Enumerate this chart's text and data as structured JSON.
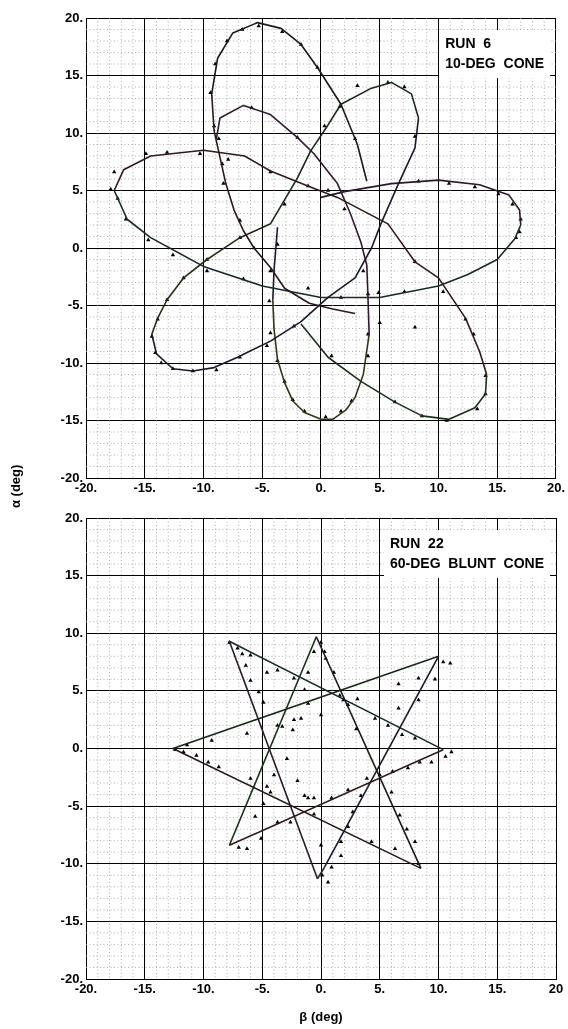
{
  "chart_data": [
    {
      "type": "line",
      "ylabel": "α (deg)",
      "annotations": [
        "RUN  6",
        "10-DEG  CONE"
      ],
      "xlim": [
        -20,
        20
      ],
      "ylim": [
        -20,
        20
      ],
      "xticks": [
        {
          "value": -20,
          "label": "-20."
        },
        {
          "value": -15,
          "label": "-15."
        },
        {
          "value": -10,
          "label": "-10."
        },
        {
          "value": -5,
          "label": "-5."
        },
        {
          "value": 0,
          "label": "0."
        },
        {
          "value": 5,
          "label": "5."
        },
        {
          "value": 10,
          "label": "10."
        },
        {
          "value": 15,
          "label": "15."
        },
        {
          "value": 20,
          "label": "20."
        }
      ],
      "yticks": [
        {
          "value": -20,
          "label": "-20."
        },
        {
          "value": -15,
          "label": "-15."
        },
        {
          "value": -10,
          "label": "-10."
        },
        {
          "value": -5,
          "label": "-5."
        },
        {
          "value": 0,
          "label": "0."
        },
        {
          "value": 5,
          "label": "5."
        },
        {
          "value": 10,
          "label": "10."
        },
        {
          "value": 15,
          "label": "15."
        },
        {
          "value": 20,
          "label": "20."
        }
      ],
      "grid": true,
      "legend": false,
      "series": [
        {
          "type": "line",
          "color": "#1a1a1a",
          "marker": "none",
          "x": [
            3.9,
            3.1,
            1.7,
            -0.3,
            -1.7,
            -3.4,
            -5.4,
            -7.5,
            -8.8,
            -9.3
          ],
          "values": [
            5.8,
            9,
            12.5,
            15.7,
            17.7,
            19.1,
            19.6,
            18.7,
            16.5,
            13.4
          ]
        },
        {
          "type": "line",
          "color": "#2b1a1a",
          "marker": "none",
          "x": [
            -9.3,
            -9.1,
            -8.6,
            -8.1,
            -7.4,
            -6.6,
            -5.7,
            -4.3,
            -3.1,
            -1,
            1,
            2.9
          ],
          "values": [
            13.4,
            10.2,
            7.9,
            5.6,
            3.3,
            1.5,
            0,
            -1.7,
            -3.5,
            -4.8,
            -5.3,
            -5.7
          ]
        },
        {
          "type": "line",
          "color": "#1a2b1a",
          "marker": "none",
          "x": [
            -6.9,
            -4.3,
            -2,
            -0.9,
            0.6,
            1.7,
            4.3,
            6,
            7.7,
            8.3
          ],
          "values": [
            0.9,
            2.1,
            6.1,
            8.4,
            10.7,
            12.5,
            13.9,
            14.4,
            13.4,
            11.3
          ]
        },
        {
          "type": "line",
          "color": "#1a1a2b",
          "marker": "none",
          "x": [
            8.3,
            8,
            6.6,
            5.1,
            4.3,
            2.9,
            0.6,
            -1.7,
            -4.3,
            -7.1,
            -9.1,
            -10.9,
            -12.6,
            -14,
            -14.4
          ],
          "values": [
            11.3,
            8.7,
            5.6,
            2.1,
            0,
            -2.6,
            -4.3,
            -6.4,
            -8.1,
            -9.5,
            -10.4,
            -10.7,
            -10.5,
            -9.2,
            -7.5
          ]
        },
        {
          "type": "line",
          "color": "#2b2b1a",
          "marker": "none",
          "x": [
            -14.4,
            -13.9,
            -13.1,
            -11.7,
            -9.7,
            -6.9
          ],
          "values": [
            -7.5,
            -6.1,
            -4.5,
            -2.6,
            -1,
            0.9
          ]
        },
        {
          "type": "line",
          "color": "#2b1a2b",
          "marker": "none",
          "x": [
            0,
            2,
            6,
            10,
            13.5,
            16,
            16.9,
            17
          ],
          "values": [
            4.4,
            4.9,
            5.6,
            5.9,
            5.5,
            4.6,
            3.3,
            2
          ]
        },
        {
          "type": "line",
          "color": "#1a2b2b",
          "marker": "none",
          "x": [
            17,
            16.5,
            15,
            12.5,
            10,
            5,
            0,
            -5,
            -10,
            -14.5,
            -16.5,
            -17.6
          ],
          "values": [
            2,
            0.8,
            -1,
            -2.3,
            -3.3,
            -4.3,
            -4.3,
            -3.3,
            -1.6,
            0.9,
            2.5,
            5
          ]
        },
        {
          "type": "line",
          "color": "#331a1a",
          "marker": "none",
          "x": [
            -17.6,
            -16.8,
            -14.5,
            -10,
            -6.5,
            -4.3,
            -0.9,
            1.4,
            5.7,
            8,
            10,
            12.3,
            13.5,
            14.1
          ],
          "values": [
            5,
            6.8,
            8,
            8.5,
            8,
            6.7,
            5.3,
            4.4,
            2.1,
            -1.2,
            -2.6,
            -6.1,
            -9,
            -11
          ]
        },
        {
          "type": "line",
          "color": "#1a331a",
          "marker": "none",
          "x": [
            14.1,
            14,
            13.1,
            10.9,
            8.6,
            6.3,
            3.4,
            0.6,
            -1.7
          ],
          "values": [
            -11,
            -12.7,
            -13.9,
            -14.9,
            -14.6,
            -13.4,
            -11.6,
            -9.5,
            -6.6
          ]
        },
        {
          "type": "line",
          "color": "#1a1a33",
          "marker": "none",
          "x": [
            -3.7,
            -4,
            -4.1
          ],
          "values": [
            1.8,
            -2,
            -4.5
          ]
        },
        {
          "type": "line",
          "color": "#33331a",
          "marker": "none",
          "x": [
            -4.1,
            -4,
            -3.7,
            -3.1,
            -2.4,
            -1.4,
            0,
            1,
            2.1,
            2.9,
            3.6,
            4.1
          ],
          "values": [
            -4.5,
            -7,
            -9.7,
            -11.7,
            -13.3,
            -14.3,
            -14.9,
            -14.9,
            -14.1,
            -13,
            -11,
            -7.5
          ]
        },
        {
          "type": "line",
          "color": "#331a33",
          "marker": "none",
          "x": [
            4.1,
            4,
            3.9,
            3.4,
            2.5,
            1.4,
            -0.6,
            -2,
            -4.3,
            -6.6,
            -8.6,
            -8.9
          ],
          "values": [
            -7.5,
            -4.3,
            -1.5,
            0.5,
            3,
            5.6,
            8.2,
            9.6,
            11.6,
            12.4,
            11.3,
            9.5
          ]
        },
        {
          "type": "scatter",
          "color": "#000000",
          "marker": "triangle",
          "x": [
            -6.7,
            -5.3,
            -3.3,
            -1.7,
            -0.3,
            -8,
            -9,
            -9.4,
            -9.1,
            -8.7,
            -8.4,
            -7.9,
            -14.9,
            -17.6,
            -17.9,
            -17.3,
            -16.6,
            -13.1,
            -10.3,
            -4.3,
            -5.9,
            -2,
            0.3,
            1.6,
            2.9,
            3.1,
            5.7,
            7.1,
            8,
            8.3,
            10.9,
            13.1,
            15.1,
            16.3,
            17,
            16.9,
            2,
            0.6,
            -1.1,
            -3.1,
            -6.9,
            -8.3,
            16.6,
            8,
            10.4,
            12.3,
            13,
            14,
            14,
            13.3,
            10.7,
            8.6,
            6.3,
            8,
            5,
            4,
            4,
            3.6,
            4,
            2.6,
            1.7,
            0.4,
            -1.4,
            -2.4,
            -3.1,
            -3.7,
            -4.3,
            -4.4,
            -4.3,
            -3.7,
            -5.7,
            -6.9,
            -9.7,
            -11.7,
            -13.1,
            -13.9,
            -14.4,
            -14.1,
            -13.6,
            -12.6,
            -10.9,
            -8.9,
            -6.9,
            -4.6,
            -2.3,
            0.9,
            7.1,
            4.9,
            1.7,
            -1.1,
            -6.6,
            -9.7,
            -12.6,
            -14.7
          ],
          "values": [
            19,
            19.3,
            18.8,
            17.7,
            15.7,
            18,
            16,
            13.5,
            10.6,
            9.5,
            7.3,
            7.7,
            8.2,
            6.6,
            5.1,
            4.3,
            2.5,
            8.3,
            8.2,
            6.6,
            12.2,
            9.6,
            10.6,
            12.3,
            9.5,
            14.1,
            14.4,
            14,
            9.7,
            5.8,
            5.6,
            5.3,
            4.7,
            3.8,
            2.5,
            1.4,
            3.4,
            5,
            5.4,
            3.8,
            2.4,
            5.6,
            0.9,
            -1.2,
            -3.8,
            -6.2,
            -7.5,
            -11.1,
            -12.7,
            -14,
            -15,
            -14.6,
            -13.4,
            -6.9,
            -6.5,
            -7.5,
            -4,
            -2,
            -9.4,
            -13.3,
            -14.2,
            -14.7,
            -14.2,
            -13.2,
            -11.6,
            -9.8,
            -7.4,
            -4.6,
            -2,
            0.3,
            0,
            0.9,
            -1,
            -2.6,
            -4.5,
            -6.2,
            -7.7,
            -9.1,
            -10,
            -10.5,
            -10.7,
            -10.6,
            -9.5,
            -8.5,
            -6.8,
            -9.4,
            -3.8,
            -3.9,
            -4.3,
            -3.5,
            -2.7,
            -2,
            -0.6,
            0.7
          ]
        }
      ]
    },
    {
      "type": "line",
      "xlabel": "β (deg)",
      "annotations": [
        "RUN  22",
        "60-DEG  BLUNT  CONE"
      ],
      "xlim": [
        -20,
        20
      ],
      "ylim": [
        -20,
        20
      ],
      "xticks": [
        {
          "value": -20,
          "label": "-20."
        },
        {
          "value": -15,
          "label": "-15."
        },
        {
          "value": -10,
          "label": "-10."
        },
        {
          "value": -5,
          "label": "-5."
        },
        {
          "value": 0,
          "label": "0."
        },
        {
          "value": 5,
          "label": "5."
        },
        {
          "value": 10,
          "label": "10."
        },
        {
          "value": 15,
          "label": "15."
        },
        20
      ],
      "yticks": [
        {
          "value": -20,
          "label": "-20."
        },
        {
          "value": -15,
          "label": "-15."
        },
        {
          "value": -10,
          "label": "-10."
        },
        {
          "value": -5,
          "label": "-5."
        },
        {
          "value": 0,
          "label": "0."
        },
        {
          "value": 5,
          "label": "5."
        },
        {
          "value": 10,
          "label": "10."
        },
        {
          "value": 15,
          "label": "15."
        },
        {
          "value": 20,
          "label": "20."
        }
      ],
      "grid": true,
      "legend": false,
      "series": [
        {
          "type": "line",
          "color": "#1a1a1a",
          "marker": "none",
          "x": [
            -0.4,
            8.5
          ],
          "values": [
            9.7,
            -10.4
          ]
        },
        {
          "type": "line",
          "color": "#2b1a1a",
          "marker": "none",
          "x": [
            8.5,
            -12.6
          ],
          "values": [
            -10.4,
            0
          ]
        },
        {
          "type": "line",
          "color": "#1a2b1a",
          "marker": "none",
          "x": [
            -12.6,
            10
          ],
          "values": [
            0,
            8
          ]
        },
        {
          "type": "line",
          "color": "#1a1a2b",
          "marker": "none",
          "x": [
            10,
            0.3
          ],
          "values": [
            8,
            -10.3
          ]
        },
        {
          "type": "line",
          "color": "#2b2b1a",
          "marker": "none",
          "x": [
            0.3,
            -0.3
          ],
          "values": [
            -10.3,
            -11.3
          ]
        },
        {
          "type": "line",
          "color": "#2b1a2b",
          "marker": "none",
          "x": [
            -0.3,
            -7.8
          ],
          "values": [
            -11.3,
            9.3
          ]
        },
        {
          "type": "line",
          "color": "#1a2b2b",
          "marker": "none",
          "x": [
            -7.8,
            10.4
          ],
          "values": [
            9.3,
            -0.1
          ]
        },
        {
          "type": "line",
          "color": "#331a1a",
          "marker": "none",
          "x": [
            10.4,
            -7.8
          ],
          "values": [
            -0.1,
            -8.4
          ]
        },
        {
          "type": "line",
          "color": "#1a331a",
          "marker": "none",
          "x": [
            -7.8,
            -0.4
          ],
          "values": [
            -8.4,
            9.7
          ]
        },
        {
          "type": "scatter",
          "color": "#000000",
          "marker": "triangle",
          "x": [
            -7.8,
            -7.1,
            -6.7,
            -6,
            -6.4,
            -6,
            -5.3,
            -4.9,
            -3.7,
            -3.3,
            -2.4,
            -1.7,
            -1.1,
            -1.4,
            -1.1,
            -0.6,
            0,
            0.3,
            0.4,
            1.1,
            1.6,
            1.9,
            3,
            4.6,
            6.6,
            8.3,
            8.3,
            9.7,
            10.4,
            11,
            6.6,
            3.1,
            2.3,
            0,
            -2.3,
            -6.3,
            -9.3,
            -11.4,
            -4.6,
            -3.7,
            -2.3,
            5.7,
            6.9,
            8,
            -12.4,
            -11.7,
            -10.6,
            -9.6,
            -8.7,
            -6,
            -4.6,
            -4,
            -2.9,
            -2,
            -1.4,
            -1.1,
            -0.6,
            0,
            0.1,
            0.6,
            0.9,
            1.7,
            1.7,
            2.3,
            2.7,
            3.4,
            3.9,
            5,
            6.1,
            7.4,
            8.4,
            9.4,
            10.6,
            11.1,
            6.7,
            7.3,
            8,
            8.3,
            6.3,
            4.3,
            0.9,
            -0.6,
            -2.6,
            -3.7,
            -5.1,
            -6.3,
            -7,
            -5.6,
            -4.9,
            -4.3,
            2.3,
            6
          ],
          "values": [
            9.2,
            8.7,
            8.2,
            8.1,
            7.2,
            5.9,
            4.9,
            4,
            2,
            1.9,
            1.6,
            2.6,
            3.9,
            5.1,
            6.6,
            8.4,
            9.2,
            8.4,
            7.8,
            6.6,
            4.6,
            4.2,
            1.7,
            2.6,
            3.5,
            4.2,
            6.1,
            6,
            7.5,
            7.4,
            5.6,
            4.3,
            3.8,
            2.9,
            2.5,
            1.3,
            0.7,
            0.3,
            6.6,
            6.8,
            6.1,
            2,
            1.2,
            0.9,
            -0.1,
            -0.3,
            -0.6,
            -1.2,
            -1.6,
            -2.6,
            -3.3,
            -2.3,
            -0.9,
            -2.8,
            -4.1,
            -4.3,
            -5.7,
            -8.4,
            -11,
            -11.6,
            -10.3,
            -9.3,
            -8.1,
            -6.8,
            -5.5,
            -4.1,
            -2.6,
            -2.3,
            -2,
            -1.7,
            -1.2,
            -1.2,
            -0.7,
            -0.3,
            -5.8,
            -7,
            -8.1,
            -10,
            -8.7,
            -8.1,
            -4.3,
            -4.3,
            -6.4,
            -6.4,
            -7.8,
            -8.7,
            -8.6,
            -5.9,
            -4.8,
            -3.8,
            -3.6,
            -3.8
          ]
        }
      ]
    }
  ]
}
